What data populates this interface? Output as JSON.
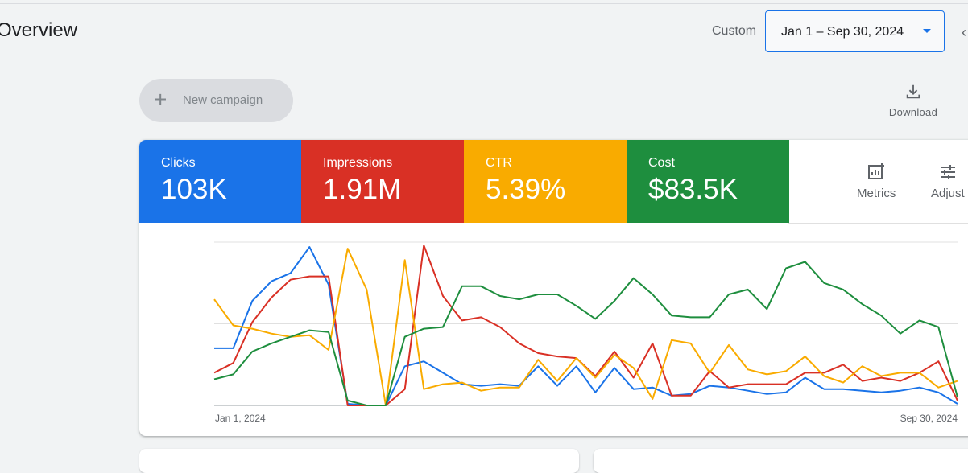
{
  "header": {
    "title": "Overview",
    "custom_label": "Custom",
    "date_range": "Jan 1 – Sep 30, 2024"
  },
  "toolbar": {
    "new_campaign_label": "New campaign",
    "download_label": "Download"
  },
  "scorecards": [
    {
      "label": "Clicks",
      "value": "103K",
      "color": "#1a73e8"
    },
    {
      "label": "Impressions",
      "value": "1.91M",
      "color": "#d93025"
    },
    {
      "label": "CTR",
      "value": "5.39%",
      "color": "#f9ab00"
    },
    {
      "label": "Cost",
      "value": "$83.5K",
      "color": "#1e8e3e"
    }
  ],
  "tools": {
    "metrics_label": "Metrics",
    "adjust_label": "Adjust"
  },
  "chart_data": {
    "type": "line",
    "x_start_label": "Jan 1, 2024",
    "x_end_label": "Sep 30, 2024",
    "grid": true,
    "series": [
      {
        "name": "Clicks",
        "color": "#1a73e8",
        "values": [
          35,
          35,
          64,
          76,
          81,
          97,
          74,
          1,
          0,
          0,
          24,
          27,
          20,
          13,
          12,
          13,
          12,
          24,
          12,
          24,
          8,
          23,
          10,
          11,
          6,
          7,
          12,
          11,
          9,
          7,
          8,
          17,
          10,
          10,
          9,
          8,
          9,
          11,
          8,
          1
        ]
      },
      {
        "name": "Impressions",
        "color": "#d93025",
        "values": [
          20,
          26,
          51,
          66,
          77,
          79,
          79,
          0,
          0,
          0,
          10,
          98,
          67,
          52,
          54,
          48,
          38,
          32,
          30,
          29,
          18,
          33,
          17,
          38,
          6,
          6,
          21,
          11,
          13,
          13,
          13,
          20,
          20,
          25,
          15,
          17,
          15,
          20,
          27,
          3
        ]
      },
      {
        "name": "CTR",
        "color": "#f9ab00",
        "values": [
          65,
          49,
          47,
          44,
          42,
          43,
          34,
          96,
          71,
          0,
          89,
          10,
          13,
          14,
          9,
          11,
          11,
          28,
          15,
          29,
          17,
          31,
          23,
          4,
          40,
          38,
          20,
          37,
          22,
          19,
          21,
          30,
          18,
          14,
          24,
          18,
          20,
          20,
          11,
          15
        ]
      },
      {
        "name": "Cost",
        "color": "#1e8e3e",
        "values": [
          16,
          19,
          33,
          38,
          42,
          46,
          45,
          3,
          0,
          0,
          42,
          47,
          48,
          73,
          73,
          67,
          65,
          68,
          68,
          61,
          53,
          64,
          78,
          68,
          55,
          54,
          54,
          68,
          71,
          59,
          84,
          88,
          75,
          71,
          62,
          55,
          44,
          52,
          48,
          5
        ]
      }
    ]
  }
}
